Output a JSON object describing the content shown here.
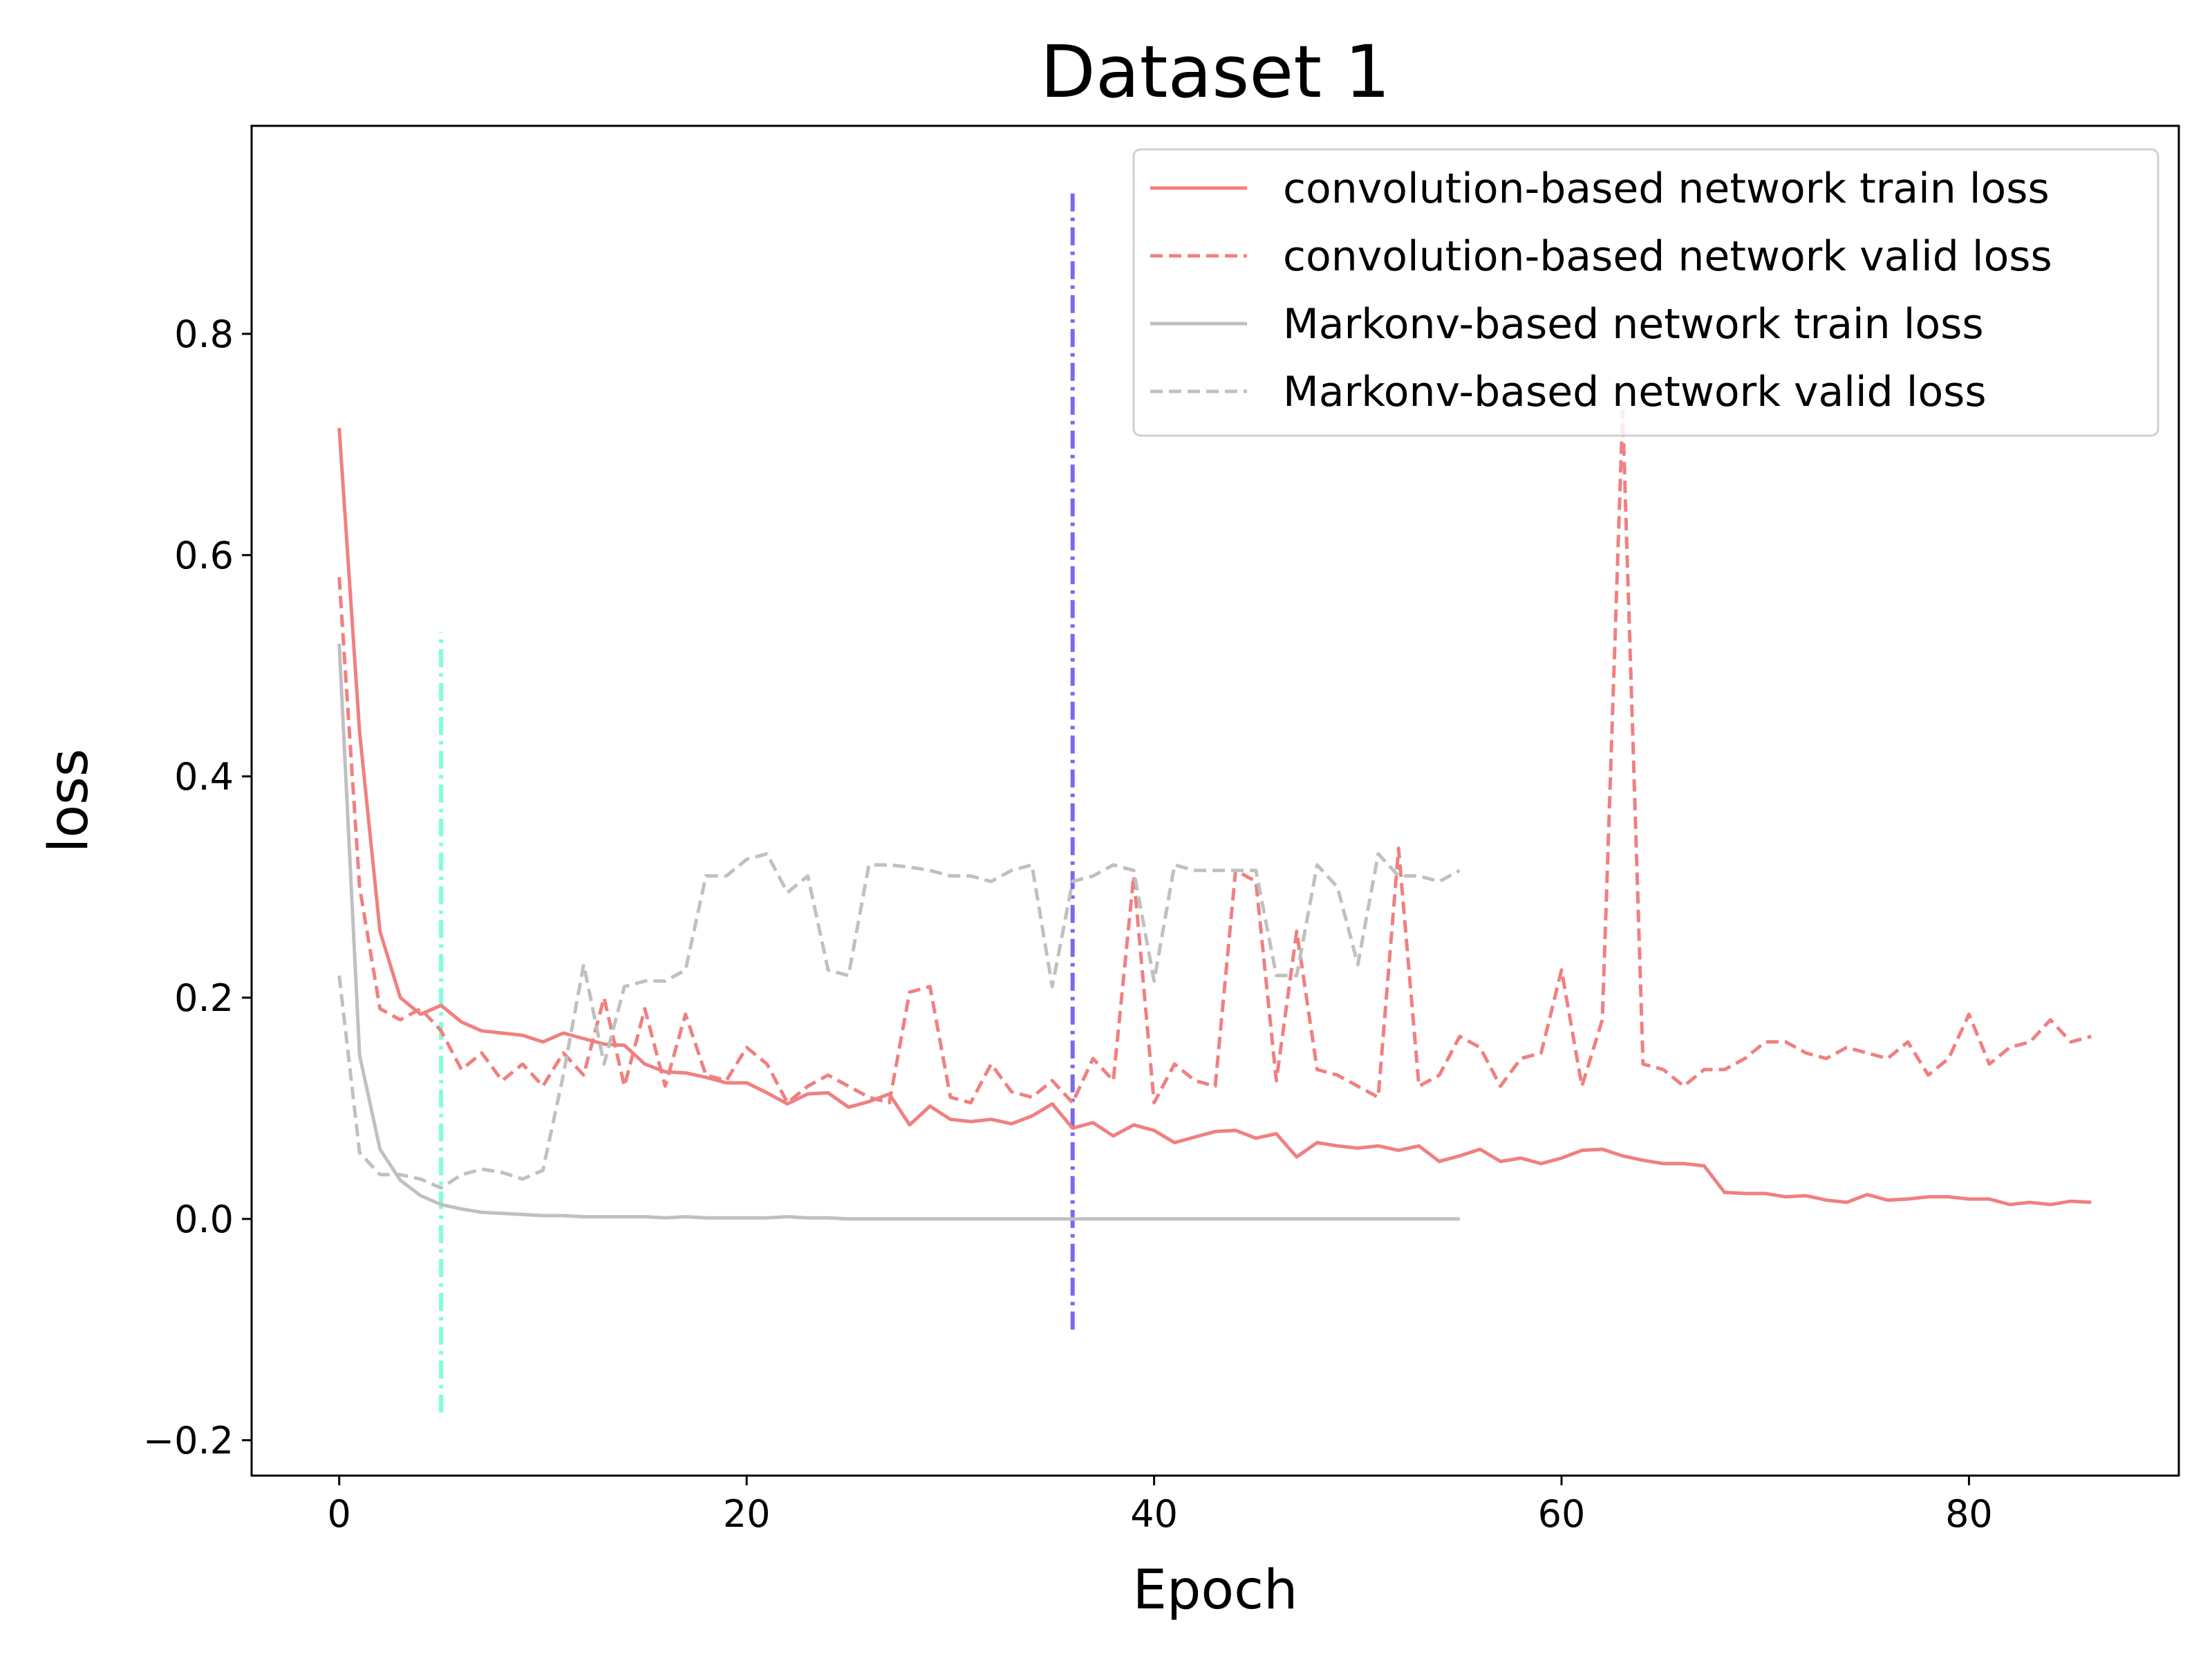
{
  "chart_data": {
    "type": "line",
    "title": "Dataset 1",
    "xlabel": "Epoch",
    "ylabel": "loss",
    "xlim": [
      -4.3,
      90.3
    ],
    "ylim": [
      -0.232,
      0.988
    ],
    "xticks": [
      0,
      20,
      40,
      60,
      80
    ],
    "xtick_labels": [
      "0",
      "20",
      "40",
      "60",
      "80"
    ],
    "yticks": [
      -0.2,
      0.0,
      0.2,
      0.4,
      0.6,
      0.8
    ],
    "ytick_labels": [
      "−0.2",
      "0.0",
      "0.2",
      "0.4",
      "0.6",
      "0.8"
    ],
    "grid": false,
    "legend_position": "top-right",
    "series": [
      {
        "name": "convolution-based network train loss",
        "color": "#f08080",
        "style": "solid",
        "x": [
          0,
          1,
          2,
          3,
          4,
          5,
          6,
          7,
          8,
          9,
          10,
          11,
          12,
          13,
          14,
          15,
          16,
          17,
          18,
          19,
          20,
          21,
          22,
          23,
          24,
          25,
          26,
          27,
          28,
          29,
          30,
          31,
          32,
          33,
          34,
          35,
          36,
          37,
          38,
          39,
          40,
          41,
          42,
          43,
          44,
          45,
          46,
          47,
          48,
          49,
          50,
          51,
          52,
          53,
          54,
          55,
          56,
          57,
          58,
          59,
          60,
          61,
          62,
          63,
          64,
          65,
          66,
          67,
          68,
          69,
          70,
          71,
          72,
          73,
          74,
          75,
          76,
          77,
          78,
          79,
          80,
          81,
          82,
          83,
          84,
          85,
          86
        ],
        "y": [
          0.715,
          0.44,
          0.26,
          0.2,
          0.185,
          0.193,
          0.178,
          0.17,
          0.168,
          0.166,
          0.16,
          0.168,
          0.163,
          0.158,
          0.157,
          0.14,
          0.133,
          0.132,
          0.128,
          0.123,
          0.123,
          0.114,
          0.104,
          0.113,
          0.114,
          0.101,
          0.106,
          0.113,
          0.085,
          0.102,
          0.09,
          0.088,
          0.09,
          0.086,
          0.093,
          0.104,
          0.082,
          0.087,
          0.075,
          0.085,
          0.08,
          0.069,
          0.074,
          0.079,
          0.08,
          0.073,
          0.077,
          0.056,
          0.069,
          0.066,
          0.064,
          0.066,
          0.062,
          0.066,
          0.052,
          0.057,
          0.063,
          0.052,
          0.055,
          0.05,
          0.055,
          0.062,
          0.063,
          0.057,
          0.053,
          0.05,
          0.05,
          0.048,
          0.024,
          0.023,
          0.023,
          0.02,
          0.021,
          0.017,
          0.015,
          0.022,
          0.017,
          0.018,
          0.02,
          0.02,
          0.018,
          0.018,
          0.013,
          0.015,
          0.013,
          0.016,
          0.015
        ]
      },
      {
        "name": "convolution-based network valid loss",
        "color": "#f08080",
        "style": "dashed",
        "x": [
          0,
          1,
          2,
          3,
          4,
          5,
          6,
          7,
          8,
          9,
          10,
          11,
          12,
          13,
          14,
          15,
          16,
          17,
          18,
          19,
          20,
          21,
          22,
          23,
          24,
          25,
          26,
          27,
          28,
          29,
          30,
          31,
          32,
          33,
          34,
          35,
          36,
          37,
          38,
          39,
          40,
          41,
          42,
          43,
          44,
          45,
          46,
          47,
          48,
          49,
          50,
          51,
          52,
          53,
          54,
          55,
          56,
          57,
          58,
          59,
          60,
          61,
          62,
          63,
          64,
          65,
          66,
          67,
          68,
          69,
          70,
          71,
          72,
          73,
          74,
          75,
          76,
          77,
          78,
          79,
          80,
          81,
          82,
          83,
          84,
          85,
          86
        ],
        "y": [
          0.58,
          0.3,
          0.19,
          0.18,
          0.19,
          0.17,
          0.135,
          0.15,
          0.125,
          0.14,
          0.12,
          0.15,
          0.13,
          0.2,
          0.12,
          0.19,
          0.12,
          0.185,
          0.13,
          0.125,
          0.155,
          0.14,
          0.105,
          0.12,
          0.13,
          0.12,
          0.11,
          0.105,
          0.205,
          0.21,
          0.11,
          0.105,
          0.14,
          0.115,
          0.11,
          0.125,
          0.105,
          0.145,
          0.125,
          0.31,
          0.105,
          0.14,
          0.125,
          0.12,
          0.315,
          0.305,
          0.125,
          0.26,
          0.135,
          0.13,
          0.12,
          0.11,
          0.335,
          0.12,
          0.13,
          0.165,
          0.155,
          0.12,
          0.145,
          0.15,
          0.225,
          0.12,
          0.18,
          0.73,
          0.14,
          0.135,
          0.12,
          0.135,
          0.135,
          0.145,
          0.16,
          0.16,
          0.15,
          0.145,
          0.155,
          0.15,
          0.145,
          0.16,
          0.13,
          0.145,
          0.185,
          0.14,
          0.155,
          0.16,
          0.18,
          0.16,
          0.165
        ]
      },
      {
        "name": "Markonv-based network train loss",
        "color": "#c0c0c0",
        "style": "solid",
        "x": [
          0,
          1,
          2,
          3,
          4,
          5,
          6,
          7,
          8,
          9,
          10,
          11,
          12,
          13,
          14,
          15,
          16,
          17,
          18,
          19,
          20,
          21,
          22,
          23,
          24,
          25,
          26,
          27,
          28,
          29,
          30,
          31,
          32,
          33,
          34,
          35,
          36,
          37,
          38,
          39,
          40,
          41,
          42,
          43,
          44,
          45,
          46,
          47,
          48,
          49,
          50,
          51,
          52,
          53,
          54,
          55
        ],
        "y": [
          0.52,
          0.148,
          0.063,
          0.035,
          0.021,
          0.013,
          0.009,
          0.006,
          0.005,
          0.004,
          0.003,
          0.003,
          0.002,
          0.002,
          0.002,
          0.002,
          0.001,
          0.002,
          0.001,
          0.001,
          0.001,
          0.001,
          0.002,
          0.001,
          0.001,
          0.0,
          0.0,
          0.0,
          0.0,
          0.0,
          0.0,
          0.0,
          0.0,
          0.0,
          0.0,
          0.0,
          0.0,
          0.0,
          0.0,
          0.0,
          0.0,
          0.0,
          0.0,
          0.0,
          0.0,
          0.0,
          0.0,
          0.0,
          0.0,
          0.0,
          0.0,
          0.0,
          0.0,
          0.0,
          0.0,
          0.0
        ]
      },
      {
        "name": "Markonv-based network valid loss",
        "color": "#c0c0c0",
        "style": "dashed",
        "x": [
          0,
          1,
          2,
          3,
          4,
          5,
          6,
          7,
          8,
          9,
          10,
          11,
          12,
          13,
          14,
          15,
          16,
          17,
          18,
          19,
          20,
          21,
          22,
          23,
          24,
          25,
          26,
          27,
          28,
          29,
          30,
          31,
          32,
          33,
          34,
          35,
          36,
          37,
          38,
          39,
          40,
          41,
          42,
          43,
          44,
          45,
          46,
          47,
          48,
          49,
          50,
          51,
          52,
          53,
          54,
          55
        ],
        "y": [
          0.22,
          0.06,
          0.04,
          0.04,
          0.036,
          0.028,
          0.04,
          0.045,
          0.042,
          0.036,
          0.044,
          0.13,
          0.23,
          0.14,
          0.21,
          0.215,
          0.215,
          0.225,
          0.31,
          0.31,
          0.325,
          0.33,
          0.295,
          0.31,
          0.225,
          0.22,
          0.32,
          0.32,
          0.318,
          0.315,
          0.31,
          0.31,
          0.305,
          0.315,
          0.32,
          0.21,
          0.305,
          0.31,
          0.32,
          0.315,
          0.215,
          0.32,
          0.315,
          0.315,
          0.315,
          0.315,
          0.22,
          0.22,
          0.32,
          0.3,
          0.23,
          0.33,
          0.31,
          0.31,
          0.305,
          0.315
        ]
      }
    ],
    "vertical_lines": [
      {
        "x": 5,
        "y_from": -0.175,
        "y_to": 0.53,
        "color": "#7fffd4",
        "style": "dashdot"
      },
      {
        "x": 36,
        "y_from": -0.1,
        "y_to": 0.93,
        "color": "#7b68ee",
        "style": "dashdot"
      }
    ]
  }
}
